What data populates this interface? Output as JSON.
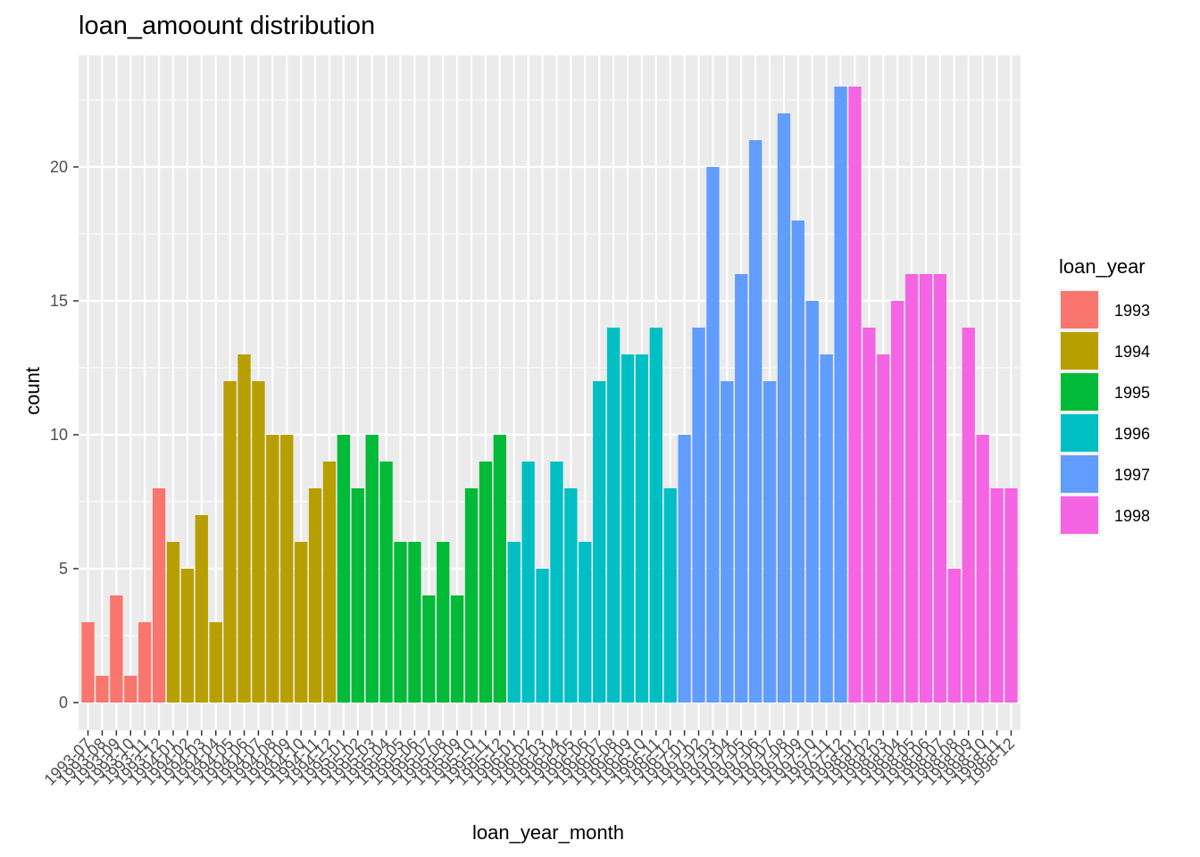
{
  "chart_data": {
    "type": "bar",
    "title": "loan_amoount distribution",
    "xlabel": "loan_year_month",
    "ylabel": "count",
    "ylim": [
      0,
      23
    ],
    "yticks": [
      0,
      5,
      10,
      15,
      20
    ],
    "grid": true,
    "legend": {
      "title": "loan_year",
      "placement": "right",
      "entries": [
        {
          "label": "1993",
          "color": "#F8766D"
        },
        {
          "label": "1994",
          "color": "#B79F00"
        },
        {
          "label": "1995",
          "color": "#00BA38"
        },
        {
          "label": "1996",
          "color": "#00BFC4"
        },
        {
          "label": "1997",
          "color": "#619CFF"
        },
        {
          "label": "1998",
          "color": "#F564E3"
        }
      ]
    },
    "categories": [
      "1993-07",
      "1993-08",
      "1993-09",
      "1993-10",
      "1993-11",
      "1993-12",
      "1994-01",
      "1994-02",
      "1994-03",
      "1994-04",
      "1994-05",
      "1994-06",
      "1994-07",
      "1994-08",
      "1994-09",
      "1994-10",
      "1994-11",
      "1994-12",
      "1995-01",
      "1995-02",
      "1995-03",
      "1995-04",
      "1995-05",
      "1995-06",
      "1995-07",
      "1995-08",
      "1995-09",
      "1995-10",
      "1995-11",
      "1995-12",
      "1996-01",
      "1996-02",
      "1996-03",
      "1996-04",
      "1996-05",
      "1996-06",
      "1996-07",
      "1996-08",
      "1996-09",
      "1996-10",
      "1996-11",
      "1996-12",
      "1997-01",
      "1997-02",
      "1997-03",
      "1997-04",
      "1997-05",
      "1997-06",
      "1997-07",
      "1997-08",
      "1997-09",
      "1997-10",
      "1997-11",
      "1997-12",
      "1998-01",
      "1998-02",
      "1998-03",
      "1998-04",
      "1998-05",
      "1998-06",
      "1998-07",
      "1998-08",
      "1998-09",
      "1998-10",
      "1998-11",
      "1998-12"
    ],
    "values": [
      3,
      1,
      4,
      1,
      3,
      8,
      6,
      5,
      7,
      3,
      12,
      13,
      12,
      10,
      10,
      6,
      8,
      9,
      10,
      8,
      10,
      9,
      6,
      6,
      4,
      6,
      4,
      8,
      9,
      10,
      6,
      9,
      5,
      9,
      8,
      6,
      12,
      14,
      13,
      13,
      14,
      8,
      10,
      14,
      20,
      12,
      16,
      21,
      12,
      22,
      18,
      15,
      13,
      23,
      23,
      14,
      13,
      15,
      16,
      16,
      16,
      5,
      14,
      10,
      8,
      8
    ],
    "groups": [
      "1993",
      "1993",
      "1993",
      "1993",
      "1993",
      "1993",
      "1994",
      "1994",
      "1994",
      "1994",
      "1994",
      "1994",
      "1994",
      "1994",
      "1994",
      "1994",
      "1994",
      "1994",
      "1995",
      "1995",
      "1995",
      "1995",
      "1995",
      "1995",
      "1995",
      "1995",
      "1995",
      "1995",
      "1995",
      "1995",
      "1996",
      "1996",
      "1996",
      "1996",
      "1996",
      "1996",
      "1996",
      "1996",
      "1996",
      "1996",
      "1996",
      "1996",
      "1997",
      "1997",
      "1997",
      "1997",
      "1997",
      "1997",
      "1997",
      "1997",
      "1997",
      "1997",
      "1997",
      "1997",
      "1998",
      "1998",
      "1998",
      "1998",
      "1998",
      "1998",
      "1998",
      "1998",
      "1998",
      "1998",
      "1998",
      "1998"
    ],
    "colors": {
      "panel_background": "#EBEBEB",
      "grid": "#FFFFFF"
    }
  }
}
